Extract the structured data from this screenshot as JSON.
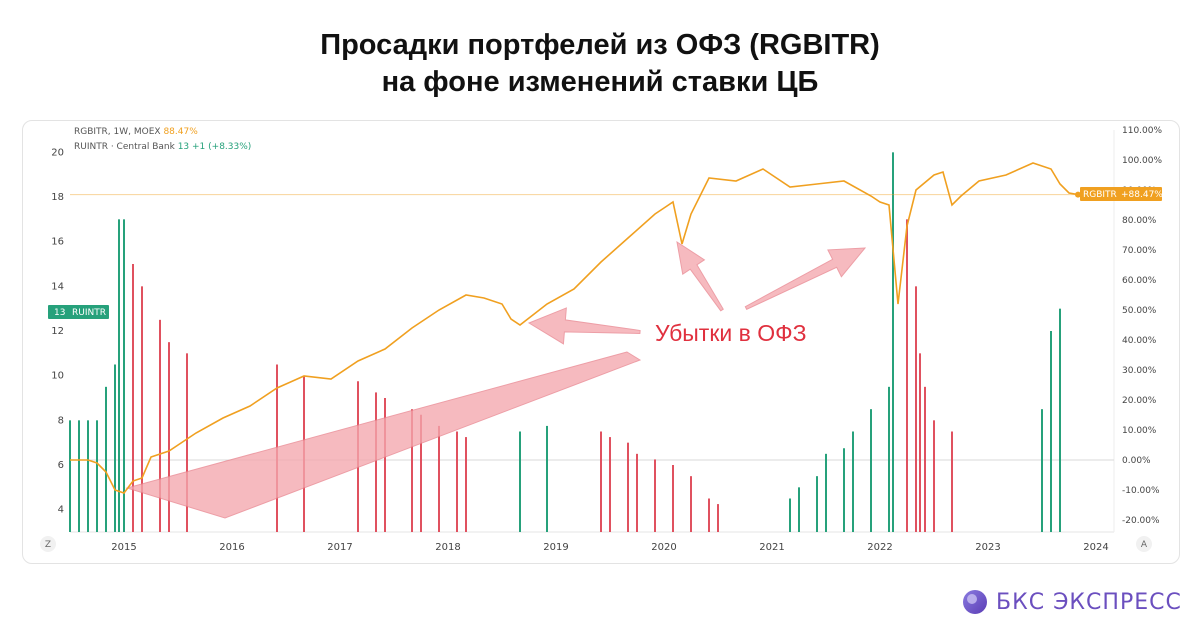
{
  "title": {
    "line1": "Просадки портфелей из ОФЗ (RGBITR)",
    "line2": "на фоне изменений ставки ЦБ"
  },
  "legend": {
    "series1_name": "RGBITR, 1W, MOEX",
    "series1_value": "88.47%",
    "series2_name": "RUINTR · Central Bank",
    "series2_value": "13",
    "series2_change": "+1 (+8.33%)"
  },
  "annotation": {
    "text": "Убытки в ОФЗ"
  },
  "badges": {
    "left_value": "13",
    "left_label": "RUINTR",
    "right_label": "RGBITR",
    "right_value": "+88.47%"
  },
  "axis_buttons": {
    "left": "Z",
    "right": "A"
  },
  "brand": {
    "name": "БКС ЭКСПРЕСС"
  },
  "colors": {
    "line": "#f0a020",
    "up_bar": "#26a17b",
    "down_bar": "#e0515f",
    "arrow": "#f4a7ae",
    "annotation": "#e0303e"
  },
  "chart_data": {
    "type": "bar",
    "x_ticks": [
      "2015",
      "2016",
      "2017",
      "2018",
      "2019",
      "2020",
      "2021",
      "2022",
      "2023",
      "2024"
    ],
    "xlim": [
      "2014-07",
      "2024-03"
    ],
    "left_axis": {
      "ticks": [
        "4",
        "6",
        "8",
        "10",
        "12",
        "14",
        "16",
        "18",
        "20"
      ],
      "ylim": [
        3,
        21
      ]
    },
    "right_axis": {
      "ticks": [
        "-20.00%",
        "-10.00%",
        "0.00%",
        "10.00%",
        "20.00%",
        "30.00%",
        "40.00%",
        "50.00%",
        "60.00%",
        "70.00%",
        "80.00%",
        "90.00%",
        "100.00%",
        "110.00%"
      ],
      "ylim": [
        -24,
        110
      ]
    },
    "series": [
      {
        "name": "RGBITR",
        "kind": "line",
        "axis": "right",
        "points": [
          [
            "2014-07",
            0
          ],
          [
            "2014-09",
            0
          ],
          [
            "2014-10",
            -1
          ],
          [
            "2014-11",
            -4
          ],
          [
            "2014-12",
            -10
          ],
          [
            "2015-01",
            -11
          ],
          [
            "2015-02",
            -7
          ],
          [
            "2015-03",
            -6
          ],
          [
            "2015-04",
            1
          ],
          [
            "2015-06",
            3
          ],
          [
            "2015-09",
            9
          ],
          [
            "2015-12",
            14
          ],
          [
            "2016-03",
            18
          ],
          [
            "2016-06",
            24
          ],
          [
            "2016-09",
            28
          ],
          [
            "2016-12",
            27
          ],
          [
            "2017-03",
            33
          ],
          [
            "2017-06",
            37
          ],
          [
            "2017-09",
            44
          ],
          [
            "2017-12",
            50
          ],
          [
            "2018-03",
            55
          ],
          [
            "2018-05",
            54
          ],
          [
            "2018-07",
            52
          ],
          [
            "2018-08",
            47
          ],
          [
            "2018-09",
            45
          ],
          [
            "2018-12",
            52
          ],
          [
            "2019-03",
            57
          ],
          [
            "2019-06",
            66
          ],
          [
            "2019-09",
            74
          ],
          [
            "2019-12",
            82
          ],
          [
            "2020-01",
            84
          ],
          [
            "2020-02",
            86
          ],
          [
            "2020-03",
            72
          ],
          [
            "2020-04",
            82
          ],
          [
            "2020-06",
            94
          ],
          [
            "2020-09",
            93
          ],
          [
            "2020-12",
            97
          ],
          [
            "2021-03",
            91
          ],
          [
            "2021-06",
            92
          ],
          [
            "2021-09",
            93
          ],
          [
            "2021-12",
            88
          ],
          [
            "2022-01",
            86
          ],
          [
            "2022-02",
            85
          ],
          [
            "2022-03",
            52
          ],
          [
            "2022-04",
            78
          ],
          [
            "2022-05",
            90
          ],
          [
            "2022-07",
            95
          ],
          [
            "2022-08",
            96
          ],
          [
            "2022-09",
            85
          ],
          [
            "2022-10",
            88
          ],
          [
            "2022-12",
            93
          ],
          [
            "2023-03",
            95
          ],
          [
            "2023-06",
            99
          ],
          [
            "2023-08",
            97
          ],
          [
            "2023-09",
            92
          ],
          [
            "2023-10",
            89
          ],
          [
            "2023-11",
            88.47
          ]
        ]
      },
      {
        "name": "RUINTR",
        "kind": "bar",
        "axis": "left",
        "points": [
          [
            "2014-07",
            8
          ],
          [
            "2014-08",
            8
          ],
          [
            "2014-09",
            8
          ],
          [
            "2014-10",
            8
          ],
          [
            "2014-11",
            9.5
          ],
          [
            "2014-12",
            10.5
          ],
          [
            "2014-12",
            17
          ],
          [
            "2015-01",
            17
          ],
          [
            "2015-02",
            15
          ],
          [
            "2015-03",
            14
          ],
          [
            "2015-05",
            12.5
          ],
          [
            "2015-06",
            11.5
          ],
          [
            "2015-08",
            11
          ],
          [
            "2016-06",
            10.5
          ],
          [
            "2016-09",
            10
          ],
          [
            "2017-03",
            9.75
          ],
          [
            "2017-05",
            9.25
          ],
          [
            "2017-06",
            9
          ],
          [
            "2017-09",
            8.5
          ],
          [
            "2017-10",
            8.25
          ],
          [
            "2017-12",
            7.75
          ],
          [
            "2018-02",
            7.5
          ],
          [
            "2018-03",
            7.25
          ],
          [
            "2018-09",
            7.5
          ],
          [
            "2018-12",
            7.75
          ],
          [
            "2019-06",
            7.5
          ],
          [
            "2019-07",
            7.25
          ],
          [
            "2019-09",
            7
          ],
          [
            "2019-10",
            6.5
          ],
          [
            "2019-12",
            6.25
          ],
          [
            "2020-02",
            6
          ],
          [
            "2020-04",
            5.5
          ],
          [
            "2020-06",
            4.5
          ],
          [
            "2020-07",
            4.25
          ],
          [
            "2021-03",
            4.5
          ],
          [
            "2021-04",
            5
          ],
          [
            "2021-06",
            5.5
          ],
          [
            "2021-07",
            6.5
          ],
          [
            "2021-09",
            6.75
          ],
          [
            "2021-10",
            7.5
          ],
          [
            "2021-12",
            8.5
          ],
          [
            "2022-02",
            9.5
          ],
          [
            "2022-02",
            20
          ],
          [
            "2022-04",
            17
          ],
          [
            "2022-05",
            14
          ],
          [
            "2022-05",
            11
          ],
          [
            "2022-06",
            9.5
          ],
          [
            "2022-07",
            8
          ],
          [
            "2022-09",
            7.5
          ],
          [
            "2023-07",
            8.5
          ],
          [
            "2023-08",
            12
          ],
          [
            "2023-09",
            13
          ]
        ]
      }
    ]
  }
}
